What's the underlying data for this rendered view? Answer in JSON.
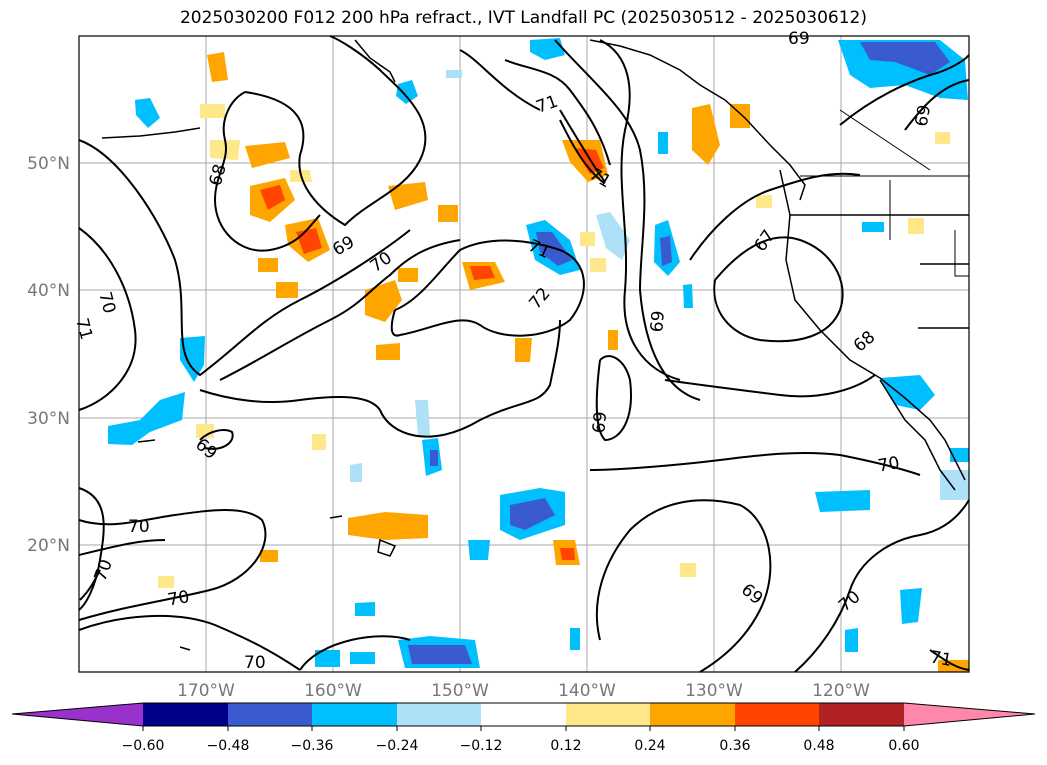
{
  "title": "2025030200 F012 200 hPa refract., IVT Landfall PC (2025030512 - 2025030612)",
  "map": {
    "lat_labels": [
      "50°N",
      "40°N",
      "30°N",
      "20°N"
    ],
    "lon_labels": [
      "170°W",
      "160°W",
      "150°W",
      "140°W",
      "130°W",
      "120°W"
    ],
    "contour_labels": [
      "68",
      "69",
      "70",
      "71",
      "72",
      "71",
      "71",
      "70",
      "71",
      "69",
      "69",
      "69",
      "67",
      "68",
      "69",
      "70",
      "70",
      "70",
      "70",
      "69",
      "70",
      "70",
      "71",
      "69",
      "68"
    ]
  },
  "colorbar": {
    "tick_labels": [
      "−0.60",
      "−0.48",
      "−0.36",
      "−0.24",
      "−0.12",
      "0.12",
      "0.24",
      "0.36",
      "0.48",
      "0.60"
    ],
    "colors": [
      "#9932cc",
      "#00008b",
      "#3a5bd0",
      "#00bfff",
      "#aee0f8",
      "#ffffff",
      "#ffe88a",
      "#ffa500",
      "#ff4500",
      "#b22222",
      "#ff88aa"
    ]
  }
}
